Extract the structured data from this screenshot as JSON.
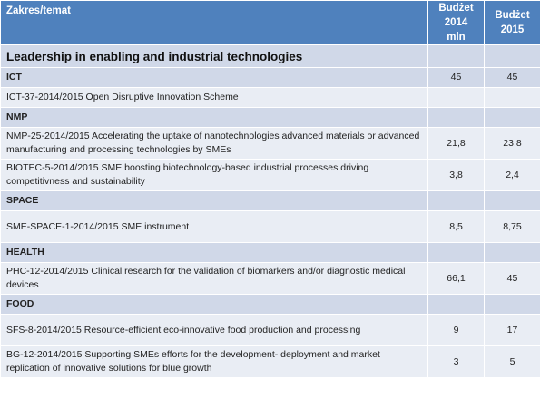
{
  "header": {
    "topic": "Zakres/temat",
    "budget2014_l1": "Budżet",
    "budget2014_l2": "2014 mln",
    "budget2015_l1": "Budżet",
    "budget2015_l2": "2015"
  },
  "section_title": "Leadership in enabling and industrial technologies",
  "rows": [
    {
      "kind": "category",
      "topic": "ICT",
      "b2014": "45",
      "b2015": "45"
    },
    {
      "kind": "item",
      "topic": "ICT-37-2014/2015 Open Disruptive Innovation Scheme",
      "b2014": "",
      "b2015": ""
    },
    {
      "kind": "category",
      "topic": "NMP",
      "b2014": "",
      "b2015": ""
    },
    {
      "kind": "item",
      "topic": "NMP-25-2014/2015 Accelerating the uptake of nanotechnologies advanced materials or advanced manufacturing and processing technologies by SMEs",
      "b2014": "21,8",
      "b2015": "23,8"
    },
    {
      "kind": "item",
      "topic": "BIOTEC-5-2014/2015 SME boosting  biotechnology-based industrial processes driving competitivness and sustainability",
      "b2014": "3,8",
      "b2015": "2,4"
    },
    {
      "kind": "category",
      "topic": "SPACE",
      "b2014": "",
      "b2015": ""
    },
    {
      "kind": "item",
      "topic": "SME-SPACE-1-2014/2015 SME instrument",
      "b2014": "8,5",
      "b2015": "8,75"
    },
    {
      "kind": "category",
      "topic": "HEALTH",
      "b2014": "",
      "b2015": ""
    },
    {
      "kind": "item",
      "topic": "PHC-12-2014/2015 Clinical research for the validation of biomarkers and/or diagnostic medical devices",
      "b2014": "66,1",
      "b2015": "45"
    },
    {
      "kind": "category",
      "topic": "FOOD",
      "b2014": "",
      "b2015": ""
    },
    {
      "kind": "item",
      "topic": "SFS-8-2014/2015 Resource-efficient eco-innovative food production and processing",
      "b2014": "9",
      "b2015": "17"
    },
    {
      "kind": "item",
      "topic": "BG-12-2014/2015 Supporting SMEs efforts for the development- deployment and market replication of innovative solutions for blue growth",
      "b2014": "3",
      "b2015": "5"
    }
  ],
  "colors": {
    "header_bg": "#4f81bd",
    "section_bg": "#d0d8e8",
    "item_bg": "#e9edf4"
  }
}
